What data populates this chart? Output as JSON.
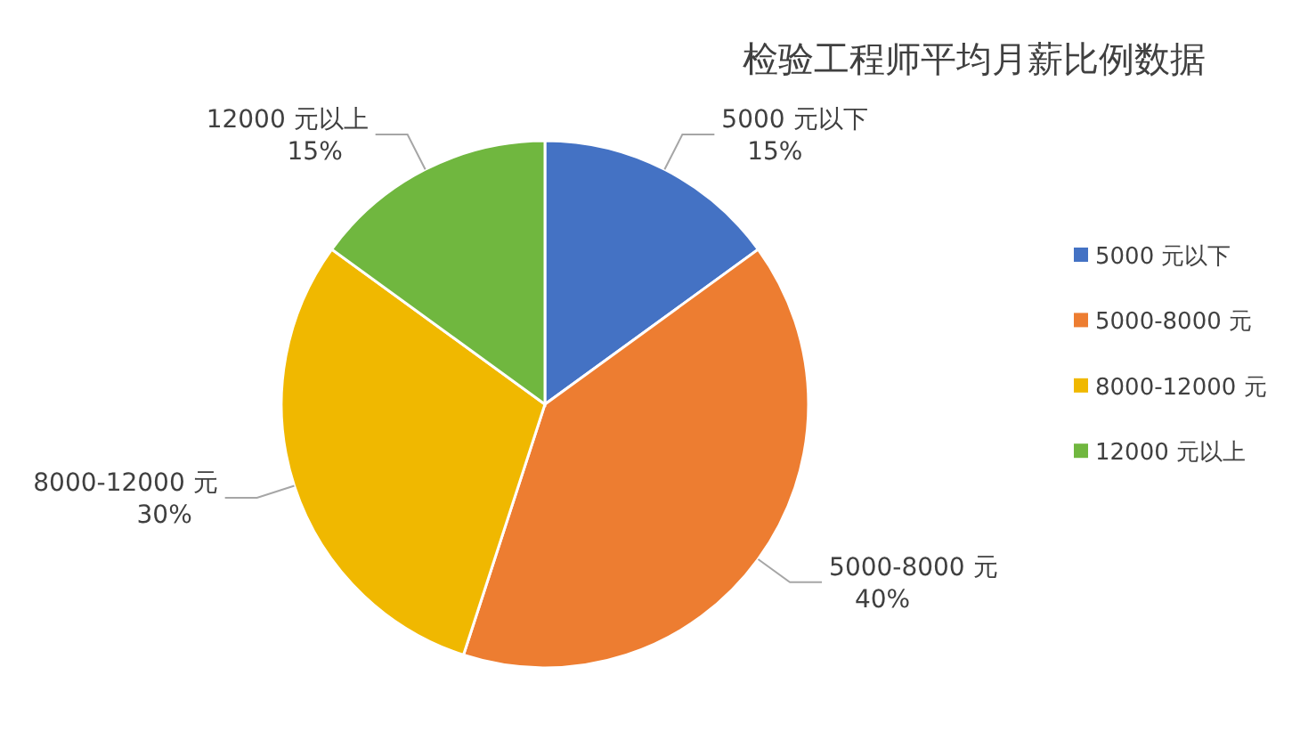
{
  "chart_data": {
    "type": "pie",
    "title": "检验工程师平均月薪比例数据",
    "categories": [
      "5000 元以下",
      "5000-8000 元",
      "8000-12000 元",
      "12000 元以上"
    ],
    "values": [
      15,
      40,
      30,
      15
    ],
    "value_labels": [
      "15%",
      "40%",
      "30%",
      "15%"
    ],
    "colors": [
      "#4472c4",
      "#ed7d31",
      "#f0b800",
      "#70b73f"
    ],
    "legend": "right"
  }
}
